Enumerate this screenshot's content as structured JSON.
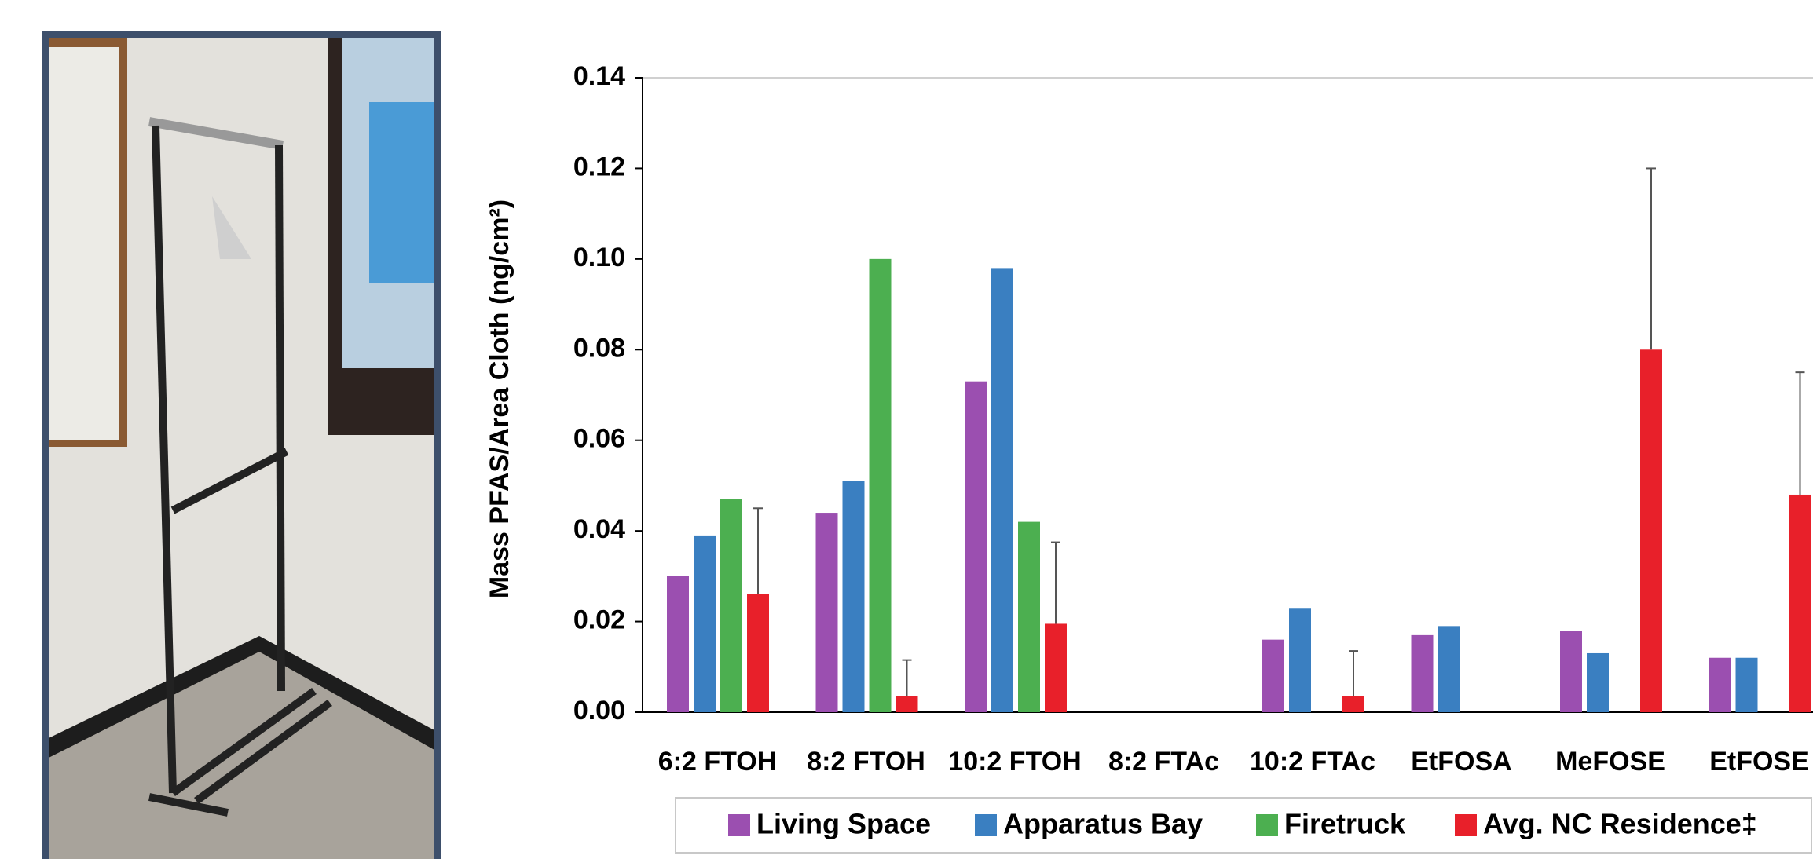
{
  "chart_data": {
    "type": "bar",
    "ylabel": "Mass PFAS/Area Cloth (ng/cm²)",
    "categories": [
      "6:2 FTOH",
      "8:2 FTOH",
      "10:2 FTOH",
      "8:2 FTAc",
      "10:2 FTAc",
      "EtFOSA",
      "MeFOSE",
      "EtFOSE"
    ],
    "series": [
      {
        "name": "Living Space",
        "color": "#9b4fb0",
        "values": [
          0.03,
          0.044,
          0.073,
          null,
          0.016,
          0.017,
          0.018,
          0.012
        ]
      },
      {
        "name": "Apparatus Bay",
        "color": "#3a7fc1",
        "values": [
          0.039,
          0.051,
          0.098,
          null,
          0.023,
          0.019,
          0.013,
          0.012
        ]
      },
      {
        "name": "Firetruck",
        "color": "#4caf50",
        "values": [
          0.047,
          0.1,
          0.042,
          null,
          null,
          null,
          null,
          null
        ]
      },
      {
        "name": "Avg. NC Residence‡",
        "color": "#e8202a",
        "values": [
          0.026,
          0.0035,
          0.0195,
          null,
          0.0035,
          null,
          0.08,
          0.048
        ],
        "errors": [
          0.019,
          0.008,
          0.018,
          null,
          0.01,
          null,
          0.04,
          0.027
        ]
      }
    ],
    "ylim": [
      0,
      0.14
    ],
    "yticks": [
      {
        "value": 0,
        "label": "0.00"
      },
      {
        "value": 0.02,
        "label": "0.02"
      },
      {
        "value": 0.04,
        "label": "0.04"
      },
      {
        "value": 0.06,
        "label": "0.06"
      },
      {
        "value": 0.08,
        "label": "0.08"
      },
      {
        "value": 0.1,
        "label": "0.10"
      },
      {
        "value": 0.12,
        "label": "0.12"
      },
      {
        "value": 0.14,
        "label": "0.14"
      }
    ],
    "grid": false,
    "legend": "bottom"
  }
}
